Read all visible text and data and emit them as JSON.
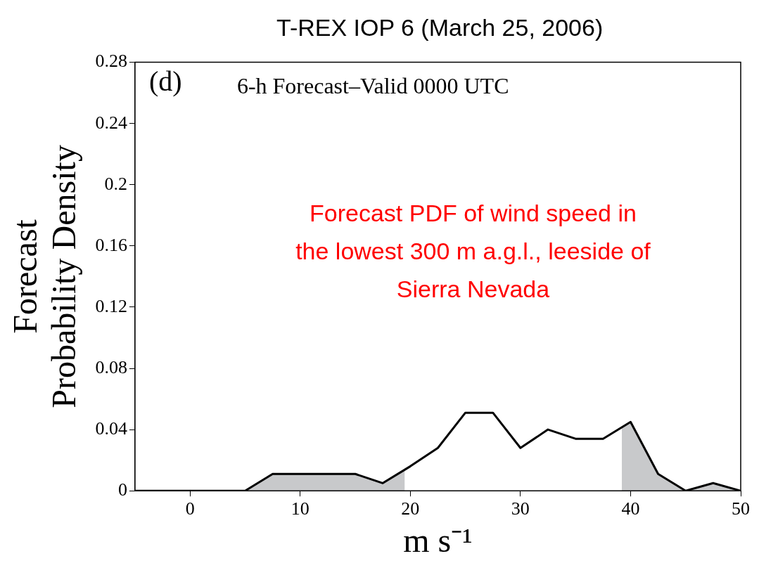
{
  "chart_data": {
    "type": "line",
    "title": "T-REX IOP 6 (March 25, 2006)",
    "xlabel": "m s⁻¹",
    "ylabel": "Forecast Probability Density",
    "x": [
      -5,
      5,
      7.5,
      10,
      12.5,
      15,
      17.5,
      20,
      22.5,
      25,
      27.5,
      30,
      32.5,
      35,
      37.5,
      40,
      42.5,
      45,
      47.5,
      50
    ],
    "series": [
      {
        "color": "#000000",
        "values": [
          0,
          0,
          0.011,
          0.011,
          0.011,
          0.011,
          0.005,
          0.016,
          0.028,
          0.051,
          0.051,
          0.028,
          0.04,
          0.034,
          0.034,
          0.045,
          0.011,
          0,
          0.005,
          0
        ]
      },
      {
        "type": "area",
        "color": "#c8c9cb",
        "x": [
          -5,
          5,
          7.5,
          10,
          12.5,
          15,
          17.5,
          19.5
        ],
        "values": [
          0,
          0,
          0.011,
          0.011,
          0.011,
          0.011,
          0.005,
          0.014
        ]
      },
      {
        "type": "area",
        "color": "#c8c9cb",
        "x": [
          39.2,
          40,
          42.5,
          45,
          47.5,
          50
        ],
        "values": [
          0.042,
          0.045,
          0.011,
          0,
          0.005,
          0
        ]
      }
    ],
    "xlim": [
      -5,
      50
    ],
    "xticks": [
      0,
      10,
      20,
      30,
      40,
      50
    ],
    "ylim": [
      0,
      0.28
    ],
    "yticks": [
      0,
      0.04,
      0.08,
      0.12,
      0.16,
      0.2,
      0.24,
      0.28
    ],
    "annotations": [
      "(d)",
      "6-h Forecast–Valid 0000 UTC",
      "Forecast PDF of wind speed in the lowest 300 m a.g.l., leeside of Sierra Nevada"
    ],
    "grid": false,
    "legend": false,
    "marker": "none",
    "line_style": "solid"
  }
}
